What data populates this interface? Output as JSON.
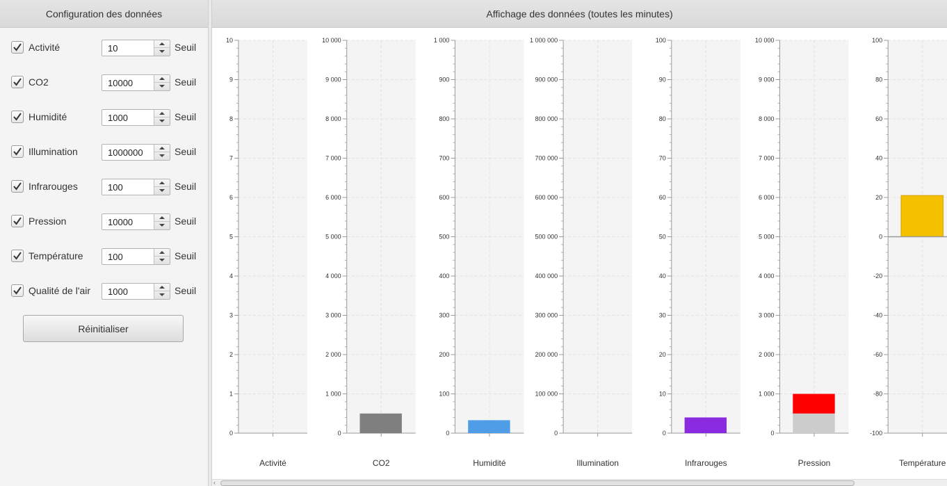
{
  "left_panel": {
    "title": "Configuration des données",
    "rows": [
      {
        "label": "Activité",
        "checked": true,
        "value": "10",
        "suffix": "Seuil"
      },
      {
        "label": "CO2",
        "checked": true,
        "value": "10000",
        "suffix": "Seuil"
      },
      {
        "label": "Humidité",
        "checked": true,
        "value": "1000",
        "suffix": "Seuil"
      },
      {
        "label": "Illumination",
        "checked": true,
        "value": "1000000",
        "suffix": "Seuil"
      },
      {
        "label": "Infrarouges",
        "checked": true,
        "value": "100",
        "suffix": "Seuil"
      },
      {
        "label": "Pression",
        "checked": true,
        "value": "10000",
        "suffix": "Seuil"
      },
      {
        "label": "Température",
        "checked": true,
        "value": "100",
        "suffix": "Seuil"
      },
      {
        "label": "Qualité de l'air",
        "checked": true,
        "value": "1000",
        "suffix": "Seuil"
      }
    ],
    "reset_label": "Réinitialiser"
  },
  "right_panel": {
    "title": "Affichage des données (toutes les minutes)"
  },
  "chart_data": [
    {
      "type": "bar",
      "categories": [
        "Activité"
      ],
      "values": [
        null
      ],
      "ylim": [
        0,
        10
      ],
      "ticks": [
        0,
        1,
        2,
        3,
        4,
        5,
        6,
        7,
        8,
        9,
        10
      ],
      "tick_labels": [
        "0",
        "1",
        "2",
        "3",
        "4",
        "5",
        "6",
        "7",
        "8",
        "9",
        "10"
      ],
      "color": "#7f7f7f"
    },
    {
      "type": "bar",
      "categories": [
        "CO2"
      ],
      "values": [
        500
      ],
      "ylim": [
        0,
        10000
      ],
      "ticks": [
        0,
        1000,
        2000,
        3000,
        4000,
        5000,
        6000,
        7000,
        8000,
        9000,
        10000
      ],
      "tick_labels": [
        "0",
        "1 000",
        "2 000",
        "3 000",
        "4 000",
        "5 000",
        "6 000",
        "7 000",
        "8 000",
        "9 000",
        "10 000"
      ],
      "color": "#7f7f7f"
    },
    {
      "type": "bar",
      "categories": [
        "Humidité"
      ],
      "values": [
        33
      ],
      "ylim": [
        0,
        1000
      ],
      "ticks": [
        0,
        100,
        200,
        300,
        400,
        500,
        600,
        700,
        800,
        900,
        1000
      ],
      "tick_labels": [
        "0",
        "100",
        "200",
        "300",
        "400",
        "500",
        "600",
        "700",
        "800",
        "900",
        "1 000"
      ],
      "color": "#4e9de6"
    },
    {
      "type": "bar",
      "categories": [
        "Illumination"
      ],
      "values": [
        null
      ],
      "ylim": [
        0,
        1000000
      ],
      "ticks": [
        0,
        100000,
        200000,
        300000,
        400000,
        500000,
        600000,
        700000,
        800000,
        900000,
        1000000
      ],
      "tick_labels": [
        "0",
        "100 000",
        "200 000",
        "300 000",
        "400 000",
        "500 000",
        "600 000",
        "700 000",
        "800 000",
        "900 000",
        "1 000 000"
      ],
      "color": "#7f7f7f"
    },
    {
      "type": "bar",
      "categories": [
        "Infrarouges"
      ],
      "values": [
        4
      ],
      "ylim": [
        0,
        100
      ],
      "ticks": [
        0,
        10,
        20,
        30,
        40,
        50,
        60,
        70,
        80,
        90,
        100
      ],
      "tick_labels": [
        "0",
        "10",
        "20",
        "30",
        "40",
        "50",
        "60",
        "70",
        "80",
        "90",
        "100"
      ],
      "color": "#8a2be2"
    },
    {
      "type": "bar",
      "categories": [
        "Pression"
      ],
      "values": [
        1000
      ],
      "threshold_segment": [
        500,
        1000
      ],
      "ylim": [
        0,
        10000
      ],
      "ticks": [
        0,
        1000,
        2000,
        3000,
        4000,
        5000,
        6000,
        7000,
        8000,
        9000,
        10000
      ],
      "tick_labels": [
        "0",
        "1 000",
        "2 000",
        "3 000",
        "4 000",
        "5 000",
        "6 000",
        "7 000",
        "8 000",
        "9 000",
        "10 000"
      ],
      "color": "#cccccc",
      "alert_color": "#ff0000"
    },
    {
      "type": "bar",
      "categories": [
        "Température"
      ],
      "values": [
        21
      ],
      "ylim": [
        -100,
        100
      ],
      "zero_line": true,
      "ticks": [
        -100,
        -80,
        -60,
        -40,
        -20,
        0,
        20,
        40,
        60,
        80,
        100
      ],
      "tick_labels": [
        "-100",
        "-80",
        "-60",
        "-40",
        "-20",
        "0",
        "20",
        "40",
        "60",
        "80",
        "100"
      ],
      "color": "#f5c000"
    }
  ]
}
